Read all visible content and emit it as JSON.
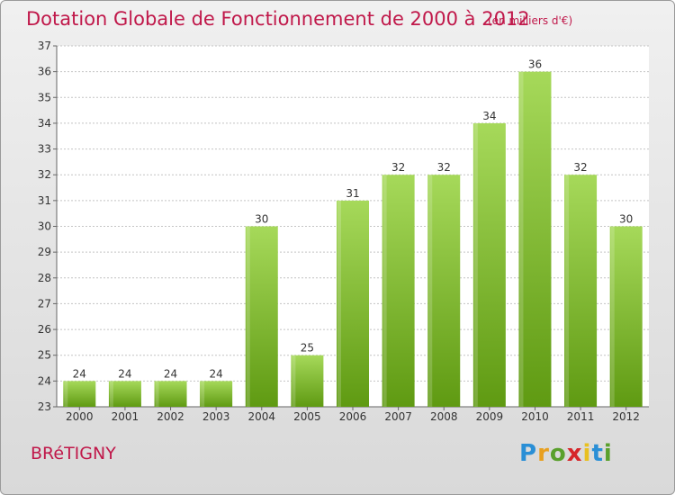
{
  "header": {
    "title": "Dotation Globale de Fonctionnement de 2000 à 2012",
    "unit": "(en milliers d'€)"
  },
  "footer": {
    "town": "BRéTIGNY",
    "logo_letters": [
      "P",
      "r",
      "o",
      "x",
      "i",
      "t",
      "i"
    ]
  },
  "colors": {
    "bar_light": "#a6d95a",
    "bar_dark": "#5f9a12",
    "grid": "#c4c4c4",
    "axis": "#666666",
    "text": "#333333",
    "accent": "#c0184a"
  },
  "chart_data": {
    "type": "bar",
    "title": "Dotation Globale de Fonctionnement de 2000 à 2012",
    "subtitle": "(en milliers d'€)",
    "xlabel": "",
    "ylabel": "",
    "categories": [
      "2000",
      "2001",
      "2002",
      "2003",
      "2004",
      "2005",
      "2006",
      "2007",
      "2008",
      "2009",
      "2010",
      "2011",
      "2012"
    ],
    "values": [
      24,
      24,
      24,
      24,
      30,
      25,
      31,
      32,
      32,
      34,
      36,
      32,
      30
    ],
    "ylim": [
      23,
      37
    ],
    "yticks": [
      23,
      24,
      25,
      26,
      27,
      28,
      29,
      30,
      31,
      32,
      33,
      34,
      35,
      36,
      37
    ],
    "grid": true,
    "data_labels": true
  }
}
